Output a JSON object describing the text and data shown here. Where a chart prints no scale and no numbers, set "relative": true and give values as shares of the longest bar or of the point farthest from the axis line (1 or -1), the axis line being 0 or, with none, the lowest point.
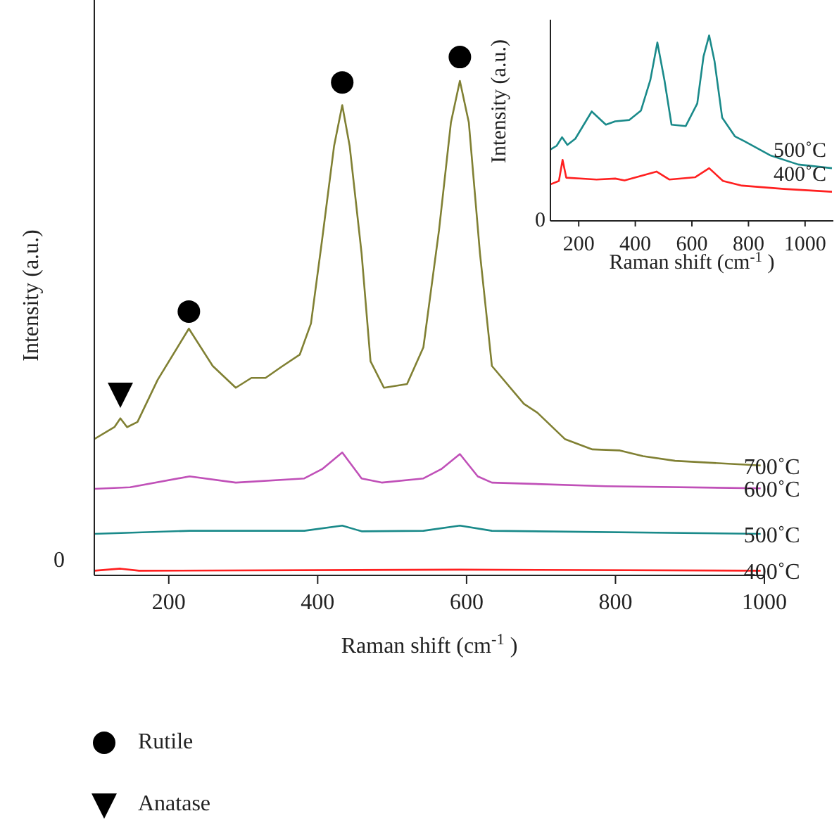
{
  "chart_data": [
    {
      "type": "line",
      "relative": true,
      "xlabel": "Raman shift (cm$^{-1}$)",
      "ylabel": "Intensity (a.u.)",
      "xlim": [
        100,
        1000
      ],
      "xticks": [
        200,
        400,
        600,
        800,
        1000
      ],
      "legend": "bottom left",
      "annotations": [
        "0"
      ],
      "series": [
        {
          "name": "700˚C",
          "color": "#808033",
          "x": [
            100,
            127,
            135,
            144,
            158,
            185,
            227,
            259,
            290,
            311,
            330,
            351,
            376,
            391,
            406,
            422,
            433,
            443,
            459,
            471,
            489,
            520,
            542,
            563,
            579,
            591,
            603,
            618,
            634,
            677,
            695,
            732,
            769,
            806,
            837,
            880,
            995
          ],
          "values": [
            0.263,
            0.286,
            0.303,
            0.286,
            0.296,
            0.377,
            0.476,
            0.404,
            0.362,
            0.381,
            0.381,
            0.402,
            0.426,
            0.486,
            0.648,
            0.828,
            0.907,
            0.828,
            0.621,
            0.413,
            0.362,
            0.369,
            0.44,
            0.666,
            0.874,
            0.954,
            0.874,
            0.621,
            0.404,
            0.331,
            0.314,
            0.263,
            0.243,
            0.241,
            0.23,
            0.221,
            0.212
          ]
        },
        {
          "name": "600˚C",
          "color": "#c050b8",
          "x": [
            100,
            148,
            228,
            290,
            382,
            406,
            433,
            459,
            486,
            542,
            566,
            591,
            615,
            634,
            787,
            995
          ],
          "values": [
            0.167,
            0.17,
            0.191,
            0.179,
            0.187,
            0.205,
            0.237,
            0.187,
            0.179,
            0.187,
            0.205,
            0.234,
            0.191,
            0.179,
            0.172,
            0.168
          ]
        },
        {
          "name": "500˚C",
          "color": "#1a8a8a",
          "x": [
            100,
            228,
            382,
            433,
            459,
            542,
            591,
            634,
            995
          ],
          "values": [
            0.08,
            0.086,
            0.086,
            0.096,
            0.085,
            0.086,
            0.096,
            0.086,
            0.08
          ]
        },
        {
          "name": "400˚C",
          "color": "#ff2020",
          "x": [
            100,
            135,
            160,
            591,
            995
          ],
          "values": [
            0.009,
            0.013,
            0.009,
            0.011,
            0.009
          ]
        },
        {
          "name": "Rutile",
          "type": "scatter",
          "marker": "circle",
          "color": "#000000",
          "x": [
            227,
            433,
            591
          ],
          "values": [
            0.509,
            0.951,
            1
          ]
        },
        {
          "name": "Anatase",
          "type": "scatter",
          "marker": "triangle",
          "color": "#000000",
          "x": [
            135
          ],
          "values": [
            0.35
          ]
        }
      ]
    },
    {
      "type": "line",
      "relative": true,
      "xlabel": "Raman shift (cm$^{-1}$)",
      "ylabel": "Intensity (a.u.)",
      "xlim": [
        100,
        1100
      ],
      "xticks": [
        200,
        400,
        600,
        800,
        1000
      ],
      "annotations": [
        "0"
      ],
      "series": [
        {
          "name": "500˚C",
          "color": "#1a8a8a",
          "x": [
            100,
            122,
            141,
            160,
            188,
            246,
            296,
            329,
            379,
            420,
            453,
            478,
            503,
            528,
            578,
            619,
            641,
            661,
            680,
            707,
            752,
            785,
            876,
            976,
            1095
          ],
          "values": [
            0.385,
            0.405,
            0.451,
            0.41,
            0.443,
            0.59,
            0.519,
            0.537,
            0.544,
            0.595,
            0.759,
            0.962,
            0.759,
            0.519,
            0.511,
            0.633,
            0.886,
            1,
            0.861,
            0.557,
            0.456,
            0.43,
            0.354,
            0.304,
            0.284
          ]
        },
        {
          "name": "400˚C",
          "color": "#ff2020",
          "x": [
            100,
            130,
            143,
            156,
            263,
            329,
            362,
            475,
            520,
            611,
            661,
            710,
            777,
            926,
            1095
          ],
          "values": [
            0.197,
            0.215,
            0.329,
            0.233,
            0.223,
            0.228,
            0.218,
            0.266,
            0.223,
            0.235,
            0.284,
            0.215,
            0.19,
            0.172,
            0.157
          ]
        }
      ]
    }
  ]
}
